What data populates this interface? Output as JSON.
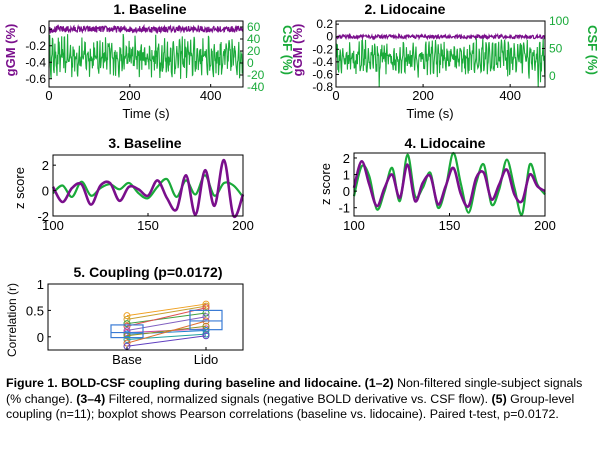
{
  "colors": {
    "gm": "#7a0f8c",
    "csf": "#1aaa3a",
    "box": "#3a7bd5",
    "axis": "#000000"
  },
  "chart_data": [
    {
      "type": "line",
      "title": "1. Baseline",
      "xlabel": "Time (s)",
      "ylabel_left": "gGM (%)",
      "ylabel_right": "CSF (%)",
      "xlim": [
        0,
        480
      ],
      "ylim_left": [
        -0.7,
        0.1
      ],
      "ylim_right": [
        -40,
        70
      ],
      "xticks": [
        "0",
        "200",
        "400"
      ],
      "yticks_left": [
        "0",
        "-0.2",
        "-0.4",
        "-0.6"
      ],
      "yticks_right": [
        "60",
        "40",
        "20",
        "0",
        "-20",
        "-40"
      ],
      "series": [
        {
          "axis": "left",
          "color": "#7a0f8c",
          "mean": 0.0,
          "amp": 0.04
        },
        {
          "axis": "right",
          "color": "#1aaa3a",
          "mean": 10,
          "amp": 28
        }
      ]
    },
    {
      "type": "line",
      "title": "2. Lidocaine",
      "xlabel": "Time (s)",
      "ylabel_left": "gGM (%)",
      "ylabel_right": "CSF (%)",
      "xlim": [
        0,
        480
      ],
      "ylim_left": [
        -0.8,
        0.25
      ],
      "ylim_right": [
        -20,
        100
      ],
      "xticks": [
        "0",
        "200",
        "400"
      ],
      "yticks_left": [
        "0.2",
        "0",
        "-0.2",
        "-0.4",
        "-0.6",
        "-0.8"
      ],
      "yticks_right": [
        "100",
        "50",
        "0"
      ],
      "series": [
        {
          "axis": "left",
          "color": "#7a0f8c",
          "mean": 0.0,
          "amp": 0.03
        },
        {
          "axis": "right",
          "color": "#1aaa3a",
          "mean": 35,
          "amp": 25
        }
      ]
    },
    {
      "type": "line",
      "title": "3. Baseline",
      "xlabel": "",
      "ylabel": "z score",
      "xlim": [
        100,
        200
      ],
      "ylim": [
        -2,
        2.8
      ],
      "xticks": [
        "100",
        "150",
        "200"
      ],
      "yticks": [
        "2",
        "0",
        "-2"
      ],
      "series": [
        {
          "color": "#7a0f8c",
          "x": [
            100,
            105,
            110,
            115,
            120,
            125,
            130,
            135,
            140,
            145,
            150,
            155,
            160,
            165,
            170,
            175,
            180,
            185,
            190,
            195,
            200
          ],
          "y": [
            0.3,
            -0.9,
            0.2,
            0.5,
            -1.1,
            0.4,
            0.6,
            -0.8,
            0.3,
            0.1,
            -0.4,
            0.8,
            -0.6,
            -1.5,
            1.2,
            -1.9,
            1.6,
            -1.2,
            2.4,
            -2.0,
            -0.3
          ]
        },
        {
          "color": "#1aaa3a",
          "x": [
            100,
            105,
            110,
            115,
            120,
            125,
            130,
            135,
            140,
            145,
            150,
            155,
            160,
            165,
            170,
            175,
            180,
            185,
            190,
            195,
            200
          ],
          "y": [
            -0.2,
            0.4,
            -0.5,
            0.7,
            -0.4,
            0.2,
            0.5,
            0.1,
            0.6,
            -0.2,
            -0.6,
            0.3,
            0.9,
            -0.5,
            0.8,
            -0.3,
            1.2,
            -0.4,
            0.6,
            0.4,
            -0.5
          ]
        }
      ]
    },
    {
      "type": "line",
      "title": "4. Lidocaine",
      "xlabel": "",
      "ylabel": "z score",
      "xlim": [
        100,
        200
      ],
      "ylim": [
        -1.5,
        2.3
      ],
      "xticks": [
        "100",
        "150",
        "200"
      ],
      "yticks": [
        "2",
        "1",
        "0",
        "-1"
      ],
      "series": [
        {
          "color": "#7a0f8c",
          "x": [
            100,
            104,
            108,
            112,
            116,
            120,
            124,
            128,
            132,
            136,
            140,
            144,
            148,
            152,
            156,
            160,
            164,
            168,
            172,
            176,
            180,
            184,
            188,
            192,
            196,
            200
          ],
          "y": [
            0.2,
            1.8,
            0.4,
            -0.9,
            0.2,
            1.0,
            -0.4,
            1.6,
            -0.6,
            0.5,
            0.9,
            -0.8,
            0.3,
            1.4,
            -0.2,
            -0.9,
            0.8,
            1.1,
            -0.5,
            0.4,
            1.3,
            -0.2,
            -0.6,
            1.0,
            0.3,
            0.0
          ]
        },
        {
          "color": "#1aaa3a",
          "x": [
            100,
            104,
            108,
            112,
            116,
            120,
            124,
            128,
            132,
            136,
            140,
            144,
            148,
            152,
            156,
            160,
            164,
            168,
            172,
            176,
            180,
            184,
            188,
            192,
            196,
            200
          ],
          "y": [
            -0.3,
            1.5,
            0.9,
            -1.1,
            0.0,
            1.4,
            -0.6,
            2.2,
            -0.3,
            0.2,
            1.1,
            -1.0,
            0.2,
            2.3,
            0.4,
            -1.3,
            0.5,
            1.6,
            -0.8,
            0.1,
            1.9,
            0.2,
            -1.4,
            1.6,
            0.4,
            -0.2
          ]
        }
      ]
    },
    {
      "type": "box",
      "title": "5. Coupling (p=0.0172)",
      "ylabel": "Correlation (r)",
      "categories": [
        "Base",
        "Lido"
      ],
      "ylim": [
        -0.25,
        1
      ],
      "yticks": [
        "1",
        "0.5",
        "0"
      ],
      "paired": [
        [
          0.4,
          0.62
        ],
        [
          0.33,
          0.58
        ],
        [
          0.25,
          0.45
        ],
        [
          0.2,
          0.55
        ],
        [
          0.12,
          0.38
        ],
        [
          0.08,
          0.15
        ],
        [
          0.05,
          0.12
        ],
        [
          0.02,
          0.2
        ],
        [
          -0.05,
          0.05
        ],
        [
          -0.12,
          0.3
        ],
        [
          -0.18,
          0.02
        ]
      ],
      "paired_colors": [
        "#f0a020",
        "#c8a030",
        "#40a040",
        "#e05050",
        "#8060c0",
        "#d040a0",
        "#2080d0",
        "#909020",
        "#20a0a0",
        "#e07030",
        "#6040c0"
      ]
    }
  ],
  "caption": {
    "head": "Figure 1. BOLD-CSF coupling during baseline and lidocaine. (1–2)",
    "p1": "Non-filtered single-subject signals (% change).",
    "b2": "(3–4)",
    "p2": "Filtered, normalized signals (negative BOLD derivative vs. CSF flow).",
    "b3": "(5)",
    "p3": "Group-level coupling (n=11); boxplot shows Pearson correlations (baseline vs. lidocaine). Paired t-test, p=0.0172."
  }
}
